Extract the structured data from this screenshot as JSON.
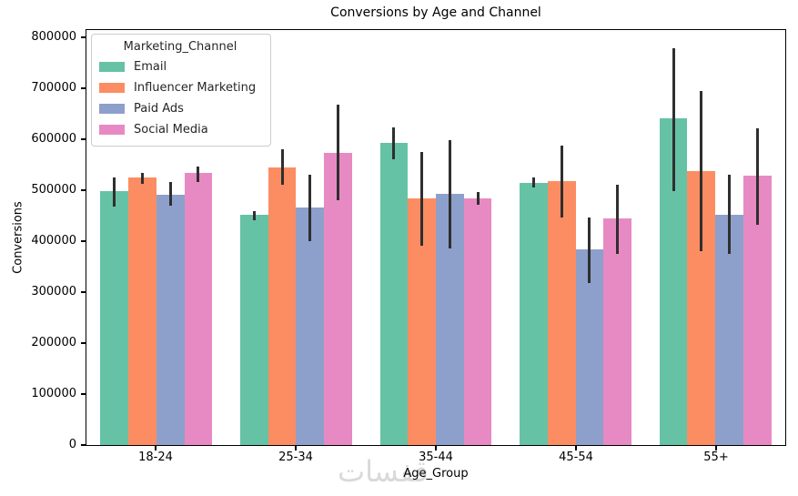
{
  "watermark": "قفسات",
  "colors": {
    "axis": "#000000",
    "error_bar": "#2f2f2f",
    "legend_border": "#cccccc",
    "watermark": "#d9d9d9"
  },
  "chart_data": {
    "type": "bar",
    "title": "Conversions by Age and Channel",
    "xlabel": "Age_Group",
    "ylabel": "Conversions",
    "legend_title": "Marketing_Channel",
    "legend_position": "upper left",
    "grid": false,
    "ylim": [
      0,
      814000
    ],
    "yticks": [
      0,
      100000,
      200000,
      300000,
      400000,
      500000,
      600000,
      700000,
      800000
    ],
    "categories": [
      "18-24",
      "25-34",
      "35-44",
      "45-54",
      "55+"
    ],
    "series": [
      {
        "name": "Email",
        "color": "#66c2a5",
        "values": [
          498000,
          451000,
          593000,
          515000,
          640000
        ],
        "error_low": [
          467000,
          441000,
          561000,
          506000,
          498000
        ],
        "error_high": [
          525000,
          458000,
          623000,
          524000,
          778000
        ]
      },
      {
        "name": "Influencer Marketing",
        "color": "#fc8d62",
        "values": [
          524000,
          545000,
          483000,
          518000,
          538000
        ],
        "error_low": [
          513000,
          510000,
          391000,
          447000,
          381000
        ],
        "error_high": [
          533000,
          580000,
          575000,
          588000,
          695000
        ]
      },
      {
        "name": "Paid Ads",
        "color": "#8da0cb",
        "values": [
          491000,
          466000,
          492000,
          383000,
          451000
        ],
        "error_low": [
          469000,
          400000,
          386000,
          317000,
          374000
        ],
        "error_high": [
          516000,
          531000,
          598000,
          447000,
          531000
        ]
      },
      {
        "name": "Social Media",
        "color": "#e78ac3",
        "values": [
          533000,
          573000,
          483000,
          444000,
          528000
        ],
        "error_low": [
          516000,
          480000,
          472000,
          375000,
          432000
        ],
        "error_high": [
          546000,
          668000,
          496000,
          511000,
          621000
        ]
      }
    ]
  }
}
